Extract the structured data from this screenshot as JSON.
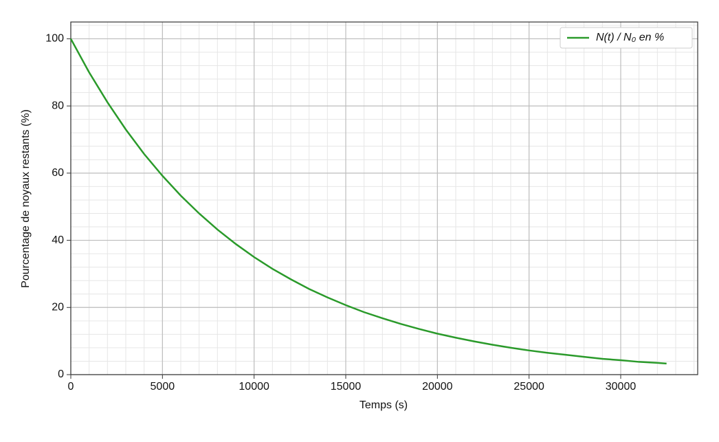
{
  "chart_data": {
    "type": "line",
    "xlabel": "Temps (s)",
    "ylabel": "Pourcentage de noyaux restants (%)",
    "x": [
      0,
      1000,
      2000,
      3000,
      4000,
      5000,
      6000,
      7000,
      8000,
      9000,
      10000,
      11000,
      12000,
      13000,
      14000,
      15000,
      16000,
      17000,
      18000,
      19000,
      20000,
      21000,
      22000,
      23000,
      24000,
      25000,
      26000,
      27000,
      28000,
      29000,
      30000,
      31000,
      32000,
      32500
    ],
    "series": [
      {
        "name": "N(t) / N₀ en %",
        "color": "#2a9a2a",
        "values": [
          100,
          90.0,
          81.1,
          73.0,
          65.7,
          59.2,
          53.3,
          48.0,
          43.2,
          38.9,
          35.0,
          31.5,
          28.4,
          25.5,
          23.0,
          20.7,
          18.6,
          16.8,
          15.1,
          13.6,
          12.2,
          11.0,
          9.9,
          8.9,
          8.0,
          7.2,
          6.5,
          5.9,
          5.3,
          4.7,
          4.3,
          3.8,
          3.5,
          3.3
        ]
      }
    ],
    "xlim": [
      0,
      34200
    ],
    "ylim": [
      0,
      105
    ],
    "xticks": [
      0,
      5000,
      10000,
      15000,
      20000,
      25000,
      30000
    ],
    "yticks": [
      0,
      20,
      40,
      60,
      80,
      100
    ],
    "grid": true,
    "minor_grid": true,
    "legend": "upper right"
  }
}
